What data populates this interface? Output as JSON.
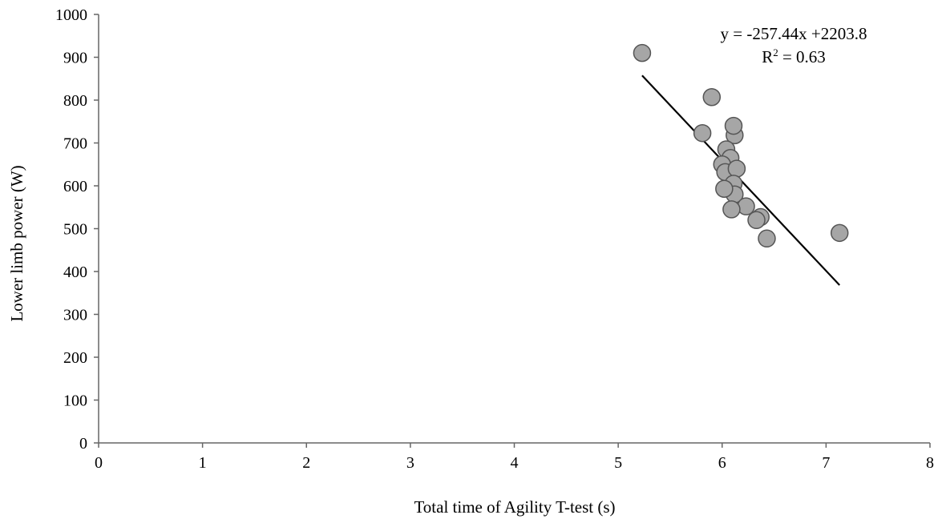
{
  "chart_data": {
    "type": "scatter",
    "title": "",
    "xlabel": "Total time of Agility T-test (s)",
    "ylabel": "Lower limb power (W)",
    "xlim": [
      0,
      8
    ],
    "ylim": [
      0,
      1000
    ],
    "x_ticks": [
      0,
      1,
      2,
      3,
      4,
      5,
      6,
      7,
      8
    ],
    "y_ticks": [
      0,
      100,
      200,
      300,
      400,
      500,
      600,
      700,
      800,
      900,
      1000
    ],
    "grid": false,
    "legend": "none",
    "colors": {
      "marker_fill": "#a6a6a6",
      "marker_stroke": "#555555",
      "trendline": "#000000"
    },
    "series": [
      {
        "points": [
          {
            "x": 5.23,
            "y": 910
          },
          {
            "x": 5.9,
            "y": 807
          },
          {
            "x": 5.81,
            "y": 723
          },
          {
            "x": 6.12,
            "y": 718
          },
          {
            "x": 6.11,
            "y": 740
          },
          {
            "x": 6.04,
            "y": 685
          },
          {
            "x": 6.08,
            "y": 665
          },
          {
            "x": 6.0,
            "y": 650
          },
          {
            "x": 6.03,
            "y": 632
          },
          {
            "x": 6.14,
            "y": 640
          },
          {
            "x": 6.11,
            "y": 605
          },
          {
            "x": 6.12,
            "y": 580
          },
          {
            "x": 6.02,
            "y": 593
          },
          {
            "x": 6.23,
            "y": 552
          },
          {
            "x": 6.09,
            "y": 545
          },
          {
            "x": 6.37,
            "y": 527
          },
          {
            "x": 6.33,
            "y": 520
          },
          {
            "x": 6.43,
            "y": 477
          },
          {
            "x": 7.13,
            "y": 490
          }
        ]
      }
    ],
    "trendline": {
      "slope": -257.44,
      "intercept": 2203.8,
      "x_range": [
        5.23,
        7.13
      ],
      "equation": "y = -257.44x +2203.8",
      "r2_prefix": "R",
      "r2_superscript": "2",
      "r2_value": " = 0.63"
    }
  }
}
